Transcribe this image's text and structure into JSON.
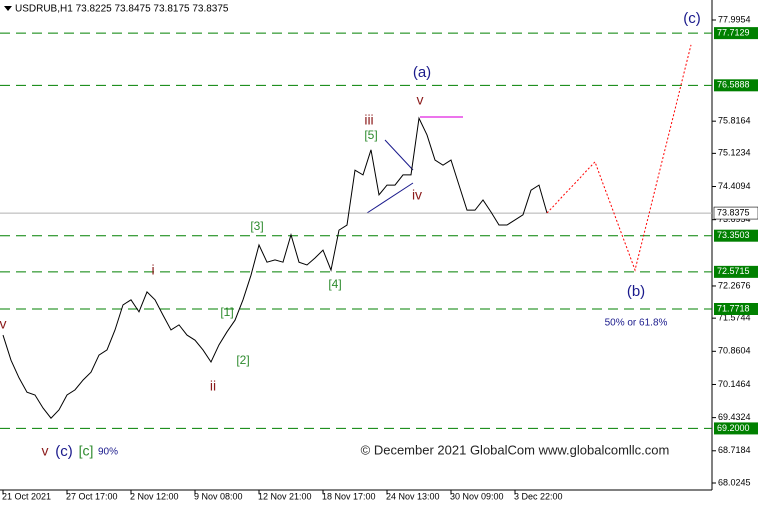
{
  "chart_data": {
    "type": "line",
    "title": "USDRUB,H1  73.8225 73.8475 73.8175 73.8375",
    "categories": [
      "21 Oct 2021",
      null,
      null,
      null,
      null,
      null,
      null,
      null,
      "27 Oct 17:00",
      null,
      null,
      null,
      null,
      null,
      null,
      null,
      "2 Nov 12:00",
      null,
      null,
      null,
      null,
      null,
      null,
      null,
      "9 Nov 08:00",
      null,
      null,
      null,
      null,
      null,
      null,
      null,
      "12 Nov 21:00",
      null,
      null,
      null,
      null,
      null,
      null,
      null,
      "18 Nov 17:00",
      null,
      null,
      null,
      null,
      null,
      null,
      null,
      "24 Nov 13:00",
      null,
      null,
      null,
      null,
      null,
      null,
      null,
      "30 Nov 09:00",
      null,
      null,
      null,
      null,
      null,
      null,
      null,
      "3 Dec 22:00",
      null,
      null,
      null,
      null,
      null,
      null,
      null,
      null,
      null,
      null,
      null,
      null,
      null,
      null,
      null,
      null,
      null,
      null,
      null,
      null,
      null,
      null
    ],
    "series": [
      {
        "color": "#000000",
        "values": [
          71.21,
          70.67,
          70.29,
          69.98,
          69.92,
          69.64,
          69.42,
          69.6,
          69.92,
          70.03,
          70.24,
          70.41,
          70.78,
          70.89,
          71.32,
          71.86,
          71.97,
          71.71,
          72.14,
          71.97,
          71.64,
          71.32,
          71.43,
          71.21,
          71.1,
          70.89,
          70.63,
          71.0,
          71.28,
          71.53,
          71.97,
          72.5,
          73.15,
          72.78,
          72.83,
          72.78,
          73.37,
          72.78,
          72.72,
          72.87,
          73.04,
          72.61,
          73.47,
          73.58,
          74.76,
          74.66,
          75.2,
          74.23,
          74.44,
          74.44,
          74.66,
          74.66,
          75.88,
          75.52,
          74.98,
          74.87,
          74.98,
          74.44,
          73.9,
          73.9,
          74.12,
          73.86,
          73.58,
          73.58,
          73.69,
          73.8,
          74.33,
          74.44,
          73.84,
          null,
          null,
          null,
          null,
          null,
          null,
          null,
          null,
          null,
          null,
          null,
          null,
          null,
          null,
          null,
          null,
          null,
          null
        ]
      },
      {
        "color": "#ff0000",
        "line_style": "dotted",
        "values": [
          null,
          null,
          null,
          null,
          null,
          null,
          null,
          null,
          null,
          null,
          null,
          null,
          null,
          null,
          null,
          null,
          null,
          null,
          null,
          null,
          null,
          null,
          null,
          null,
          null,
          null,
          null,
          null,
          null,
          null,
          null,
          null,
          null,
          null,
          null,
          null,
          null,
          null,
          null,
          null,
          null,
          null,
          null,
          null,
          null,
          null,
          null,
          null,
          null,
          null,
          null,
          null,
          null,
          null,
          null,
          null,
          null,
          null,
          null,
          null,
          null,
          null,
          null,
          null,
          null,
          null,
          null,
          null,
          73.84,
          74.02,
          74.21,
          74.39,
          74.57,
          74.76,
          74.94,
          74.47,
          74.01,
          73.54,
          73.08,
          72.61,
          73.3,
          73.99,
          74.69,
          75.38,
          76.07,
          76.77,
          77.46
        ]
      }
    ],
    "ylim": [
      68.0245,
      77.9954
    ],
    "yticks": [
      77.9954,
      75.8164,
      75.1234,
      74.4094,
      73.6954,
      72.2676,
      71.5744,
      70.8604,
      70.1464,
      69.4324,
      68.7184,
      68.0245
    ],
    "levels": [
      77.7129,
      76.5888,
      73.3503,
      72.5715,
      71.7718,
      {
        "value": 69.2,
        "label": "69.2000"
      }
    ],
    "level_color": "#008000",
    "last_price": 73.8375,
    "annotations": [
      {
        "text": "(c)",
        "color": "#1a1a8c"
      },
      {
        "text": "(a)",
        "color": "#1a1a8c"
      },
      {
        "text": "(b)",
        "color": "#1a1a8c"
      },
      {
        "text": "v",
        "color": "#8b1a1a"
      },
      {
        "text": "iii",
        "color": "#8b1a1a"
      },
      {
        "text": "[5]",
        "color": "#2e8b2e"
      },
      {
        "text": "iv",
        "color": "#8b1a1a"
      },
      {
        "text": "[3]",
        "color": "#2e8b2e"
      },
      {
        "text": "[4]",
        "color": "#2e8b2e"
      },
      {
        "text": "[1]",
        "color": "#2e8b2e"
      },
      {
        "text": "[2]",
        "color": "#2e8b2e"
      },
      {
        "text": "i",
        "color": "#8b1a1a"
      },
      {
        "text": "ii",
        "color": "#8b1a1a"
      },
      {
        "text": "v",
        "color": "#8b1a1a"
      },
      {
        "text": "v",
        "color": "#8b1a1a"
      },
      {
        "text": "(c)",
        "color": "#1a1a8c"
      },
      {
        "text": "[c]",
        "color": "#2e8b2e"
      },
      {
        "text": "90%",
        "color": "#1a1a8c"
      },
      {
        "text": "50% or 61.8%",
        "color": "#1a1a8c"
      }
    ],
    "copyright": "© December 2021 GlobalCom www.globalcomllc.com"
  }
}
